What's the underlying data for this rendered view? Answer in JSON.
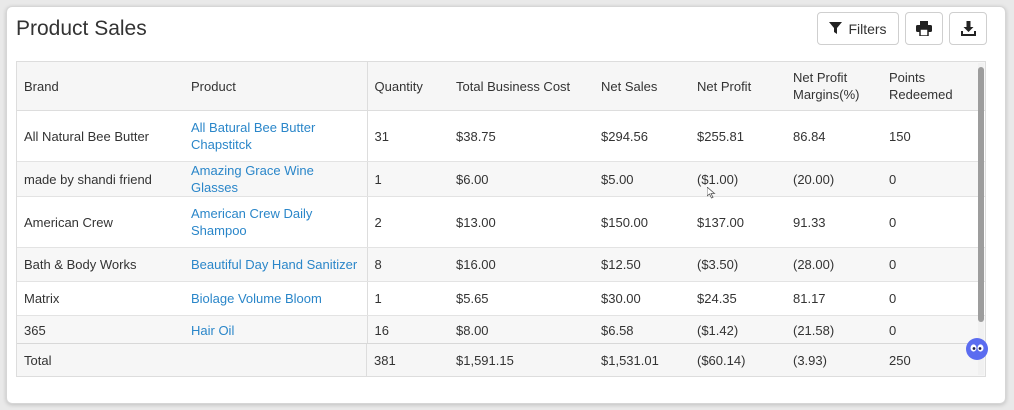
{
  "page_title": "Product Sales",
  "toolbar": {
    "filters_label": "Filters",
    "filter_icon": "filter-icon",
    "print_icon": "print-icon",
    "download_icon": "download-icon"
  },
  "table": {
    "headers": [
      "Brand",
      "Product",
      "Quantity",
      "Total Business Cost",
      "Net Sales",
      "Net Profit",
      "Net Profit Margins(%)",
      "Points Redeemed"
    ],
    "rows": [
      [
        "All Natural Bee Butter",
        "All Batural Bee Butter Chapstitck",
        "31",
        "$38.75",
        "$294.56",
        "$255.81",
        "86.84",
        "150"
      ],
      [
        "made by shandi friend",
        "Amazing Grace Wine Glasses",
        "1",
        "$6.00",
        "$5.00",
        "($1.00)",
        "(20.00)",
        "0"
      ],
      [
        "American Crew",
        "American Crew Daily Shampoo",
        "2",
        "$13.00",
        "$150.00",
        "$137.00",
        "91.33",
        "0"
      ],
      [
        "Bath & Body Works",
        "Beautiful Day Hand Sanitizer",
        "8",
        "$16.00",
        "$12.50",
        "($3.50)",
        "(28.00)",
        "0"
      ],
      [
        "Matrix",
        "Biolage Volume Bloom",
        "1",
        "$5.65",
        "$30.00",
        "$24.35",
        "81.17",
        "0"
      ],
      [
        "365",
        "Hair Oil",
        "16",
        "$8.00",
        "$6.58",
        "($1.42)",
        "(21.58)",
        "0"
      ]
    ],
    "totals": {
      "label": "Total",
      "quantity": "381",
      "total_business_cost": "$1,591.15",
      "net_sales": "$1,531.01",
      "net_profit": "($60.14)",
      "net_profit_margin": "(3.93)",
      "points_redeemed": "250"
    }
  },
  "colors": {
    "link": "#2a86c9",
    "text": "#333333",
    "header_bg": "#f6f6f6",
    "assistant": "#5b6cf0"
  }
}
